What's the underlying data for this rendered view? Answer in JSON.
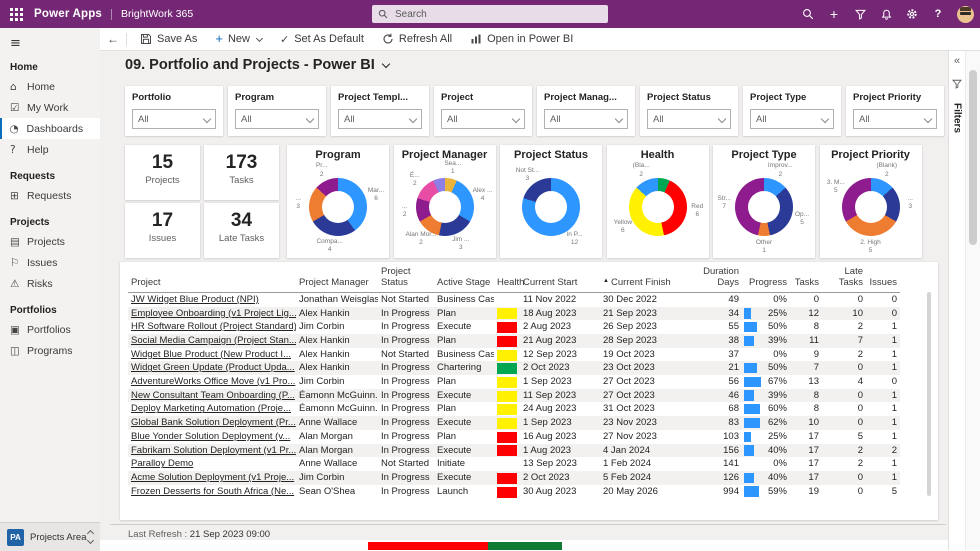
{
  "topbar": {
    "app_name": "Power Apps",
    "environment": "BrightWork 365",
    "search_placeholder": "Search"
  },
  "toolbar": {
    "back": "←",
    "items": [
      {
        "icon": "save-icon",
        "label": "Save As"
      },
      {
        "icon": "plus-icon",
        "label": "New",
        "has_dropdown": true
      },
      {
        "icon": "check-icon",
        "label": "Set As Default"
      },
      {
        "icon": "refresh-icon",
        "label": "Refresh All"
      },
      {
        "icon": "powerbi-icon",
        "label": "Open in Power BI"
      }
    ]
  },
  "sidebar": {
    "groups": [
      {
        "label": "Home",
        "items": [
          {
            "label": "Home",
            "icon": "home-icon"
          },
          {
            "label": "My Work",
            "icon": "my-work-icon"
          },
          {
            "label": "Dashboards",
            "icon": "dashboards-icon",
            "selected": true
          },
          {
            "label": "Help",
            "icon": "help-icon"
          }
        ]
      },
      {
        "label": "Requests",
        "items": [
          {
            "label": "Requests",
            "icon": "requests-icon"
          }
        ]
      },
      {
        "label": "Projects",
        "items": [
          {
            "label": "Projects",
            "icon": "projects-icon"
          },
          {
            "label": "Issues",
            "icon": "issues-icon"
          },
          {
            "label": "Risks",
            "icon": "risks-icon"
          }
        ]
      },
      {
        "label": "Portfolios",
        "items": [
          {
            "label": "Portfolios",
            "icon": "portfolios-icon"
          },
          {
            "label": "Programs",
            "icon": "programs-icon"
          }
        ]
      }
    ],
    "area_switcher": {
      "initials": "PA",
      "label": "Projects Area"
    }
  },
  "page": {
    "title": "09. Portfolio and Projects - Power BI"
  },
  "filters": [
    {
      "label": "Portfolio",
      "value": "All"
    },
    {
      "label": "Program",
      "value": "All"
    },
    {
      "label": "Project Templ...",
      "value": "All"
    },
    {
      "label": "Project",
      "value": "All"
    },
    {
      "label": "Project Manag...",
      "value": "All"
    },
    {
      "label": "Project Status",
      "value": "All"
    },
    {
      "label": "Project Type",
      "value": "All"
    },
    {
      "label": "Project Priority",
      "value": "All"
    }
  ],
  "kpis": [
    {
      "value": "15",
      "label": "Projects"
    },
    {
      "value": "173",
      "label": "Tasks"
    },
    {
      "value": "17",
      "label": "Issues"
    },
    {
      "value": "34",
      "label": "Late Tasks"
    }
  ],
  "charts": [
    {
      "title": "Program",
      "type": "donut",
      "segments": [
        {
          "label": "Mar...",
          "value": 6,
          "color": "#2e96ff"
        },
        {
          "label": "Compa...",
          "value": 4,
          "color": "#2b3a97"
        },
        {
          "label": "...",
          "value": 3,
          "color": "#ee7d31"
        },
        {
          "label": "Pr...",
          "value": 2,
          "color": "#8e1c8e"
        }
      ]
    },
    {
      "title": "Project Manager",
      "type": "donut",
      "segments": [
        {
          "label": "Sea...",
          "value": 1,
          "color": "#e8b43c"
        },
        {
          "label": "Alex ...",
          "value": 4,
          "color": "#2e96ff"
        },
        {
          "label": "Jim ...",
          "value": 3,
          "color": "#2b3a97"
        },
        {
          "label": "Alan Mor...",
          "value": 2,
          "color": "#ee7d31"
        },
        {
          "label": "...",
          "value": 2,
          "color": "#8e1c8e"
        },
        {
          "label": "É...",
          "value": 2,
          "color": "#e84da5"
        },
        {
          "label": "",
          "value": 1,
          "color": "#8d7fe6"
        }
      ]
    },
    {
      "title": "Project Status",
      "type": "donut",
      "segments": [
        {
          "label": "In P...",
          "value": 12,
          "color": "#2e96ff"
        },
        {
          "label": "Not St...",
          "value": 3,
          "color": "#2b3a97"
        }
      ]
    },
    {
      "title": "Health",
      "type": "donut",
      "segments": [
        {
          "label": "",
          "value": 1,
          "color": "#00a651"
        },
        {
          "label": "Red",
          "value": 6,
          "color": "#fe0000"
        },
        {
          "label": "Yellow",
          "value": 6,
          "color": "#fff100"
        },
        {
          "label": "(Bla...",
          "value": 2,
          "color": "#2e96ff"
        }
      ]
    },
    {
      "title": "Project Type",
      "type": "donut",
      "segments": [
        {
          "label": "Improv...",
          "value": 2,
          "color": "#2e96ff"
        },
        {
          "label": "Op...",
          "value": 5,
          "color": "#2b3a97"
        },
        {
          "label": "Other",
          "value": 1,
          "color": "#ee7d31"
        },
        {
          "label": "Str...",
          "value": 7,
          "color": "#8e1c8e"
        }
      ]
    },
    {
      "title": "Project Priority",
      "type": "donut",
      "segments": [
        {
          "label": "(Blank)",
          "value": 2,
          "color": "#2e96ff"
        },
        {
          "label": "...",
          "value": 3,
          "color": "#2b3a97"
        },
        {
          "label": "2. High",
          "value": 5,
          "color": "#ee7d31"
        },
        {
          "label": "3. M...",
          "value": 5,
          "color": "#8e1c8e"
        }
      ]
    }
  ],
  "table": {
    "columns": [
      "Project",
      "Project Manager",
      "Project Status",
      "Active Stage",
      "Health",
      "Current Start",
      "Current Finish",
      "Duration Days",
      "Progress",
      "Tasks",
      "Late Tasks",
      "Issues"
    ],
    "sorted_column": "Current Finish",
    "rows": [
      {
        "project": "JW Widget Blue Product (NPI)",
        "manager": "Jonathan Weisglass",
        "status": "Not Started",
        "stage": "Business Case",
        "health": "",
        "start": "11 Nov 2022",
        "finish": "30 Dec 2022",
        "duration": 49,
        "progress": 0,
        "tasks": 0,
        "late_tasks": 0,
        "issues": 0
      },
      {
        "project": "Employee Onboarding (v1 Project Lig...",
        "manager": "Alex Hankin",
        "status": "In Progress",
        "stage": "Plan",
        "health": "yellow",
        "start": "18 Aug 2023",
        "finish": "21 Sep 2023",
        "duration": 34,
        "progress": 25,
        "tasks": 12,
        "late_tasks": 10,
        "issues": 0
      },
      {
        "project": "HR Software Rollout (Project Standard)",
        "manager": "Jim Corbin",
        "status": "In Progress",
        "stage": "Execute",
        "health": "red",
        "start": "2 Aug 2023",
        "finish": "26 Sep 2023",
        "duration": 55,
        "progress": 50,
        "tasks": 8,
        "late_tasks": 2,
        "issues": 1
      },
      {
        "project": "Social Media Campaign (Project Stan...",
        "manager": "Alex Hankin",
        "status": "In Progress",
        "stage": "Plan",
        "health": "red",
        "start": "21 Aug 2023",
        "finish": "28 Sep 2023",
        "duration": 38,
        "progress": 39,
        "tasks": 11,
        "late_tasks": 7,
        "issues": 1
      },
      {
        "project": "Widget Blue Product (New Product I...",
        "manager": "Alex Hankin",
        "status": "Not Started",
        "stage": "Business Case",
        "health": "yellow",
        "start": "12 Sep 2023",
        "finish": "19 Oct 2023",
        "duration": 37,
        "progress": 0,
        "tasks": 9,
        "late_tasks": 2,
        "issues": 1
      },
      {
        "project": "Widget Green Update (Product Upda...",
        "manager": "Alex Hankin",
        "status": "In Progress",
        "stage": "Chartering",
        "health": "green",
        "start": "2 Oct 2023",
        "finish": "23 Oct 2023",
        "duration": 21,
        "progress": 50,
        "tasks": 7,
        "late_tasks": 0,
        "issues": 1
      },
      {
        "project": "AdventureWorks Office Move (v1 Pro...",
        "manager": "Jim Corbin",
        "status": "In Progress",
        "stage": "Plan",
        "health": "yellow",
        "start": "1 Sep 2023",
        "finish": "27 Oct 2023",
        "duration": 56,
        "progress": 67,
        "tasks": 13,
        "late_tasks": 4,
        "issues": 0
      },
      {
        "project": "New Consultant Team Onboarding (P...",
        "manager": "Éamonn McGuinn...",
        "status": "In Progress",
        "stage": "Execute",
        "health": "yellow",
        "start": "11 Sep 2023",
        "finish": "27 Oct 2023",
        "duration": 46,
        "progress": 39,
        "tasks": 8,
        "late_tasks": 0,
        "issues": 1
      },
      {
        "project": "Deploy Marketing Automation (Proje...",
        "manager": "Éamonn McGuinn...",
        "status": "In Progress",
        "stage": "Plan",
        "health": "yellow",
        "start": "24 Aug 2023",
        "finish": "31 Oct 2023",
        "duration": 68,
        "progress": 60,
        "tasks": 8,
        "late_tasks": 0,
        "issues": 1
      },
      {
        "project": "Global Bank Solution Deployment (Pr...",
        "manager": "Anne Wallace",
        "status": "In Progress",
        "stage": "Execute",
        "health": "yellow",
        "start": "1 Sep 2023",
        "finish": "23 Nov 2023",
        "duration": 83,
        "progress": 62,
        "tasks": 10,
        "late_tasks": 0,
        "issues": 1
      },
      {
        "project": "Blue Yonder Solution Deployment (v...",
        "manager": "Alan Morgan",
        "status": "In Progress",
        "stage": "Plan",
        "health": "red",
        "start": "16 Aug 2023",
        "finish": "27 Nov 2023",
        "duration": 103,
        "progress": 25,
        "tasks": 17,
        "late_tasks": 5,
        "issues": 1
      },
      {
        "project": "Fabrikam Solution Deployment (v1 Pr...",
        "manager": "Alan Morgan",
        "status": "In Progress",
        "stage": "Execute",
        "health": "red",
        "start": "1 Aug 2023",
        "finish": "4 Jan 2024",
        "duration": 156,
        "progress": 40,
        "tasks": 17,
        "late_tasks": 2,
        "issues": 2
      },
      {
        "project": "Paralloy Demo",
        "manager": "Anne Wallace",
        "status": "Not Started",
        "stage": "Initiate",
        "health": "",
        "start": "13 Sep 2023",
        "finish": "1 Feb 2024",
        "duration": 141,
        "progress": 0,
        "tasks": 17,
        "late_tasks": 2,
        "issues": 1
      },
      {
        "project": "Acme Solution Deployment (v1 Proje...",
        "manager": "Jim Corbin",
        "status": "In Progress",
        "stage": "Execute",
        "health": "red",
        "start": "2 Oct 2023",
        "finish": "5 Feb 2024",
        "duration": 126,
        "progress": 40,
        "tasks": 17,
        "late_tasks": 0,
        "issues": 1
      },
      {
        "project": "Frozen Desserts for South Africa (Ne...",
        "manager": "Sean O'Shea",
        "status": "In Progress",
        "stage": "Launch",
        "health": "red",
        "start": "30 Aug 2023",
        "finish": "20 May 2026",
        "duration": 994,
        "progress": 59,
        "tasks": 19,
        "late_tasks": 0,
        "issues": 5
      }
    ]
  },
  "footer": {
    "last_refresh_label": "Last Refresh :",
    "last_refresh_value": "21 Sep 2023 09:00"
  },
  "filter_pane": {
    "collapse_glyph": "«",
    "label": "Filters"
  },
  "colors": {
    "header_purple": "#742774",
    "accent_blue": "#2e96ff",
    "nav_selected_bar": "#0f6cbd",
    "health": {
      "red": "#fe0000",
      "yellow": "#fff100",
      "green": "#00a651"
    }
  }
}
